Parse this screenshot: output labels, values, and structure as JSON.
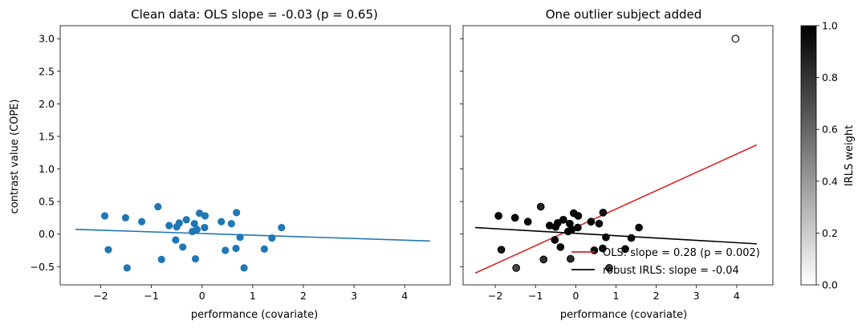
{
  "chart_data": [
    {
      "type": "scatter",
      "title": "Clean data: OLS slope = -0.03 (p = 0.65)",
      "xlabel": "performance (covariate)",
      "ylabel": "contrast value (COPE)",
      "xlim": [
        -2.8,
        4.9
      ],
      "ylim": [
        -0.78,
        3.2
      ],
      "xticks": [
        -2,
        -1,
        0,
        1,
        2,
        3,
        4
      ],
      "yticks": [
        -0.5,
        0.0,
        0.5,
        1.0,
        1.5,
        2.0,
        2.5,
        3.0
      ],
      "xtick_labels": [
        "−2",
        "−1",
        "0",
        "1",
        "2",
        "3",
        "4"
      ],
      "ytick_labels": [
        "−0.5",
        "0.0",
        "0.5",
        "1.0",
        "1.5",
        "2.0",
        "2.5",
        "3.0"
      ],
      "point_color": "#1f77b4",
      "points": [
        [
          -1.92,
          0.28
        ],
        [
          -1.85,
          -0.24
        ],
        [
          -1.51,
          0.25
        ],
        [
          -1.48,
          -0.52
        ],
        [
          -1.19,
          0.19
        ],
        [
          -0.87,
          0.42
        ],
        [
          -0.8,
          -0.39
        ],
        [
          -0.65,
          0.13
        ],
        [
          -0.52,
          -0.09
        ],
        [
          -0.5,
          0.11
        ],
        [
          -0.45,
          0.17
        ],
        [
          -0.38,
          -0.2
        ],
        [
          -0.31,
          0.22
        ],
        [
          -0.19,
          0.04
        ],
        [
          -0.15,
          0.16
        ],
        [
          -0.13,
          -0.38
        ],
        [
          -0.1,
          0.07
        ],
        [
          -0.05,
          0.32
        ],
        [
          0.06,
          0.28
        ],
        [
          0.05,
          0.1
        ],
        [
          0.38,
          0.19
        ],
        [
          0.46,
          -0.25
        ],
        [
          0.58,
          0.16
        ],
        [
          0.67,
          -0.22
        ],
        [
          0.68,
          0.33
        ],
        [
          0.75,
          -0.05
        ],
        [
          0.83,
          -0.52
        ],
        [
          1.23,
          -0.23
        ],
        [
          1.38,
          -0.06
        ],
        [
          1.57,
          0.1
        ]
      ],
      "fit_line": {
        "x": [
          -2.5,
          4.5
        ],
        "y": [
          0.072,
          -0.106
        ],
        "color": "#1f77b4"
      }
    },
    {
      "type": "scatter",
      "title": "One outlier subject added",
      "xlabel": "performance (covariate)",
      "ylabel": "",
      "xlim": [
        -2.8,
        4.9
      ],
      "ylim": [
        -0.78,
        3.2
      ],
      "xticks": [
        -2,
        -1,
        0,
        1,
        2,
        3,
        4
      ],
      "xtick_labels": [
        "−2",
        "−1",
        "0",
        "1",
        "2",
        "3",
        "4"
      ],
      "points": [
        [
          -1.92,
          0.28,
          0.98
        ],
        [
          -1.85,
          -0.24,
          0.92
        ],
        [
          -1.51,
          0.25,
          0.98
        ],
        [
          -1.48,
          -0.52,
          0.72
        ],
        [
          -1.19,
          0.19,
          0.99
        ],
        [
          -0.87,
          0.42,
          0.86
        ],
        [
          -0.8,
          -0.39,
          0.82
        ],
        [
          -0.65,
          0.13,
          0.99
        ],
        [
          -0.52,
          -0.09,
          0.99
        ],
        [
          -0.5,
          0.11,
          0.99
        ],
        [
          -0.45,
          0.17,
          0.99
        ],
        [
          -0.38,
          -0.2,
          0.97
        ],
        [
          -0.31,
          0.22,
          0.98
        ],
        [
          -0.19,
          0.04,
          0.99
        ],
        [
          -0.15,
          0.16,
          0.99
        ],
        [
          -0.13,
          -0.38,
          0.82
        ],
        [
          -0.1,
          0.07,
          0.99
        ],
        [
          -0.05,
          0.32,
          0.94
        ],
        [
          0.06,
          0.28,
          0.96
        ],
        [
          0.05,
          0.1,
          0.99
        ],
        [
          0.38,
          0.19,
          0.98
        ],
        [
          0.46,
          -0.25,
          0.95
        ],
        [
          0.58,
          0.16,
          0.98
        ],
        [
          0.67,
          -0.22,
          0.96
        ],
        [
          0.68,
          0.33,
          0.93
        ],
        [
          0.75,
          -0.05,
          0.99
        ],
        [
          0.83,
          -0.52,
          0.75
        ],
        [
          1.23,
          -0.23,
          0.96
        ],
        [
          1.38,
          -0.06,
          0.99
        ],
        [
          1.57,
          0.1,
          0.98
        ],
        [
          3.97,
          3.0,
          0.0
        ]
      ],
      "lines": [
        {
          "label": "OLS: slope = 0.28 (p = 0.002)",
          "x": [
            -2.5,
            4.5
          ],
          "y": [
            -0.6,
            1.37
          ],
          "color": "#d62728"
        },
        {
          "label": "robust IRLS: slope = -0.04",
          "x": [
            -2.5,
            4.5
          ],
          "y": [
            0.1,
            -0.15
          ],
          "color": "#000000"
        }
      ],
      "legend_position": "lower-right"
    }
  ],
  "colorbar": {
    "label": "IRLS weight",
    "range": [
      0.0,
      1.0
    ],
    "cmap": "gray_r",
    "ticks": [
      0.0,
      0.2,
      0.4,
      0.6,
      0.8,
      1.0
    ],
    "tick_labels": [
      "0.0",
      "0.2",
      "0.4",
      "0.6",
      "0.8",
      "1.0"
    ]
  }
}
